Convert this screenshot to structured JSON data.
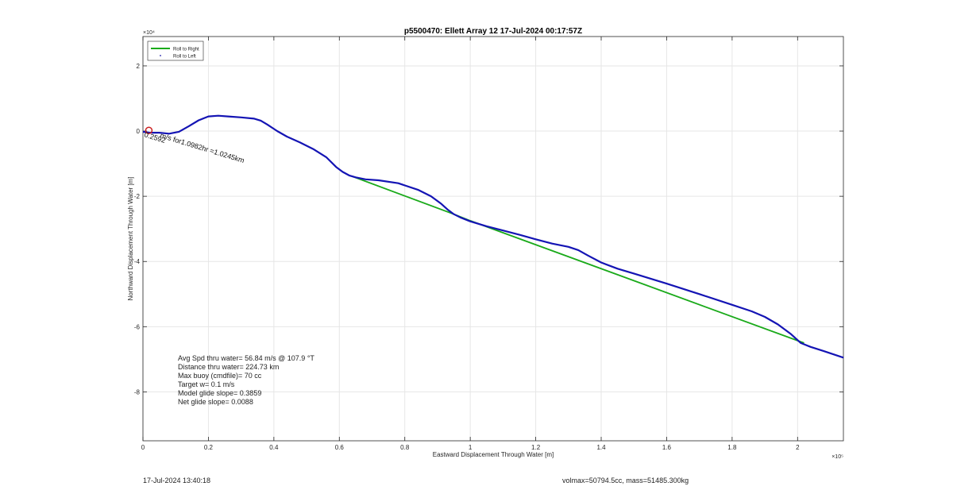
{
  "chart_data": {
    "type": "line",
    "title": "p5500470: Ellett Array 12 17-Jul-2024 00:17:57Z",
    "xlabel": "Eastward Displacement Through Water [m]",
    "ylabel": "Northward Displacement Through Water [m]",
    "x_exponent_label": "×10⁵",
    "y_exponent_label": "×10⁴",
    "xlim": [
      0,
      2.14
    ],
    "ylim": [
      -9.5,
      2.9
    ],
    "x_ticks": [
      0,
      0.2,
      0.4,
      0.6,
      0.8,
      1,
      1.2,
      1.4,
      1.6,
      1.8,
      2
    ],
    "x_tick_labels": [
      "0",
      "0.2",
      "0.4",
      "0.6",
      "0.8",
      "1",
      "1.2",
      "1.4",
      "1.6",
      "1.8",
      "2"
    ],
    "y_ticks": [
      2,
      0,
      -2,
      -4,
      -6,
      -8
    ],
    "y_tick_labels": [
      "2",
      "0",
      "-2",
      "-4",
      "-6",
      "-8"
    ],
    "grid": true,
    "legend_position": "top-left",
    "legend": [
      {
        "label": "Roll to Right",
        "color": "#1aaa1a",
        "style": "line"
      },
      {
        "label": "Roll to Left",
        "color": "#1a1aaa",
        "style": "marker"
      }
    ],
    "series": [
      {
        "name": "Roll to Right",
        "color": "#1aaa1a",
        "x": [
          0.64,
          0.95,
          1.0,
          2.02
        ],
        "y": [
          -1.39,
          -2.55,
          -2.75,
          -6.5
        ]
      },
      {
        "name": "Roll to Left",
        "color": "#1414b4",
        "x": [
          0,
          0.02,
          0.05,
          0.08,
          0.11,
          0.14,
          0.17,
          0.2,
          0.23,
          0.26,
          0.3,
          0.34,
          0.36,
          0.38,
          0.41,
          0.44,
          0.48,
          0.52,
          0.56,
          0.59,
          0.61,
          0.63,
          0.65,
          0.68,
          0.72,
          0.78,
          0.84,
          0.88,
          0.91,
          0.93,
          0.95,
          0.97,
          1.0,
          1.05,
          1.1,
          1.15,
          1.2,
          1.25,
          1.3,
          1.33,
          1.36,
          1.4,
          1.45,
          1.5,
          1.6,
          1.7,
          1.8,
          1.86,
          1.9,
          1.94,
          1.98,
          2.01,
          2.04,
          2.08,
          2.14
        ],
        "y": [
          -0.02,
          -0.05,
          -0.05,
          -0.08,
          -0.02,
          0.15,
          0.33,
          0.45,
          0.47,
          0.45,
          0.42,
          0.38,
          0.32,
          0.2,
          0.0,
          -0.17,
          -0.35,
          -0.55,
          -0.8,
          -1.1,
          -1.25,
          -1.36,
          -1.42,
          -1.48,
          -1.51,
          -1.6,
          -1.8,
          -2.0,
          -2.22,
          -2.4,
          -2.55,
          -2.65,
          -2.77,
          -2.92,
          -3.05,
          -3.18,
          -3.32,
          -3.45,
          -3.55,
          -3.65,
          -3.82,
          -4.03,
          -4.22,
          -4.37,
          -4.68,
          -5.0,
          -5.33,
          -5.53,
          -5.7,
          -5.93,
          -6.23,
          -6.5,
          -6.62,
          -6.75,
          -6.95
        ]
      }
    ],
    "start_marker": {
      "x": 0.018,
      "y": 0.02,
      "color": "#cc2222"
    },
    "current_label": "m/s for1.0982hr =1.0245km",
    "current_label_overlap": "0.2592",
    "annotation_lines": [
      "Avg Spd thru water= 56.84 m/s @ 107.9 °T",
      "Distance thru water= 224.73 km",
      "Max buoy (cmdfile)= 70 cc",
      "Target w= 0.1 m/s",
      "Model glide slope= 0.3859",
      "Net glide slope= 0.0088"
    ]
  },
  "footer": {
    "timestamp": "17-Jul-2024 13:40:18",
    "mass_info": "volmax=50794.5cc, mass=51485.300kg"
  }
}
